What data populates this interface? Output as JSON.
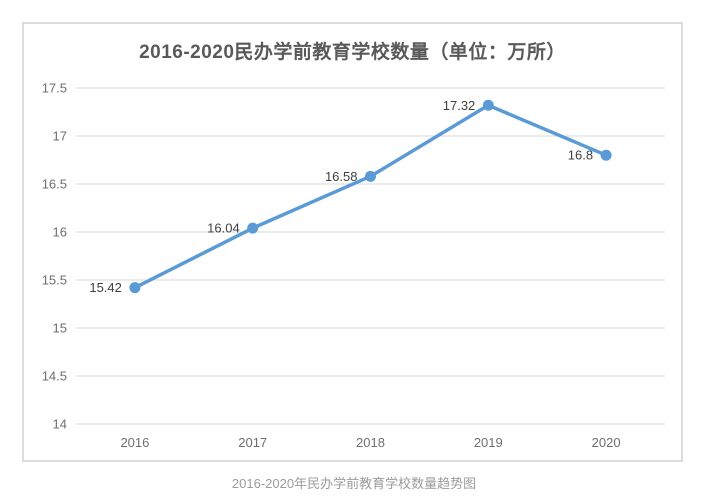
{
  "chart": {
    "title": "2016-2020民办学前教育学校数量（单位：万所）",
    "caption": "2016-2020年民办学前教育学校数量趋势图"
  },
  "chart_data": {
    "type": "line",
    "title": "2016-2020民办学前教育学校数量（单位：万所）",
    "caption": "2016-2020年民办学前教育学校数量趋势图",
    "categories": [
      "2016",
      "2017",
      "2018",
      "2019",
      "2020"
    ],
    "values": [
      15.42,
      16.04,
      16.58,
      17.32,
      16.8
    ],
    "data_labels": [
      "15.42",
      "16.04",
      "16.58",
      "17.32",
      "16.8"
    ],
    "xlabel": "",
    "ylabel": "",
    "ylim": [
      14,
      17.5
    ],
    "ytick_step": 0.5,
    "ytick_labels": [
      "14",
      "14.5",
      "15",
      "15.5",
      "16",
      "16.5",
      "17",
      "17.5"
    ],
    "grid": true,
    "legend": false,
    "marker": "circle",
    "colors": {
      "line": "#5B9BD5",
      "marker": "#5B9BD5",
      "grid": "#d9d9d9",
      "title_text": "#595959",
      "axis_text": "#6e6e6e",
      "data_label_text": "#3f3f3f",
      "caption_text": "#9b9b9b",
      "frame_border": "#dcdcdc"
    }
  }
}
